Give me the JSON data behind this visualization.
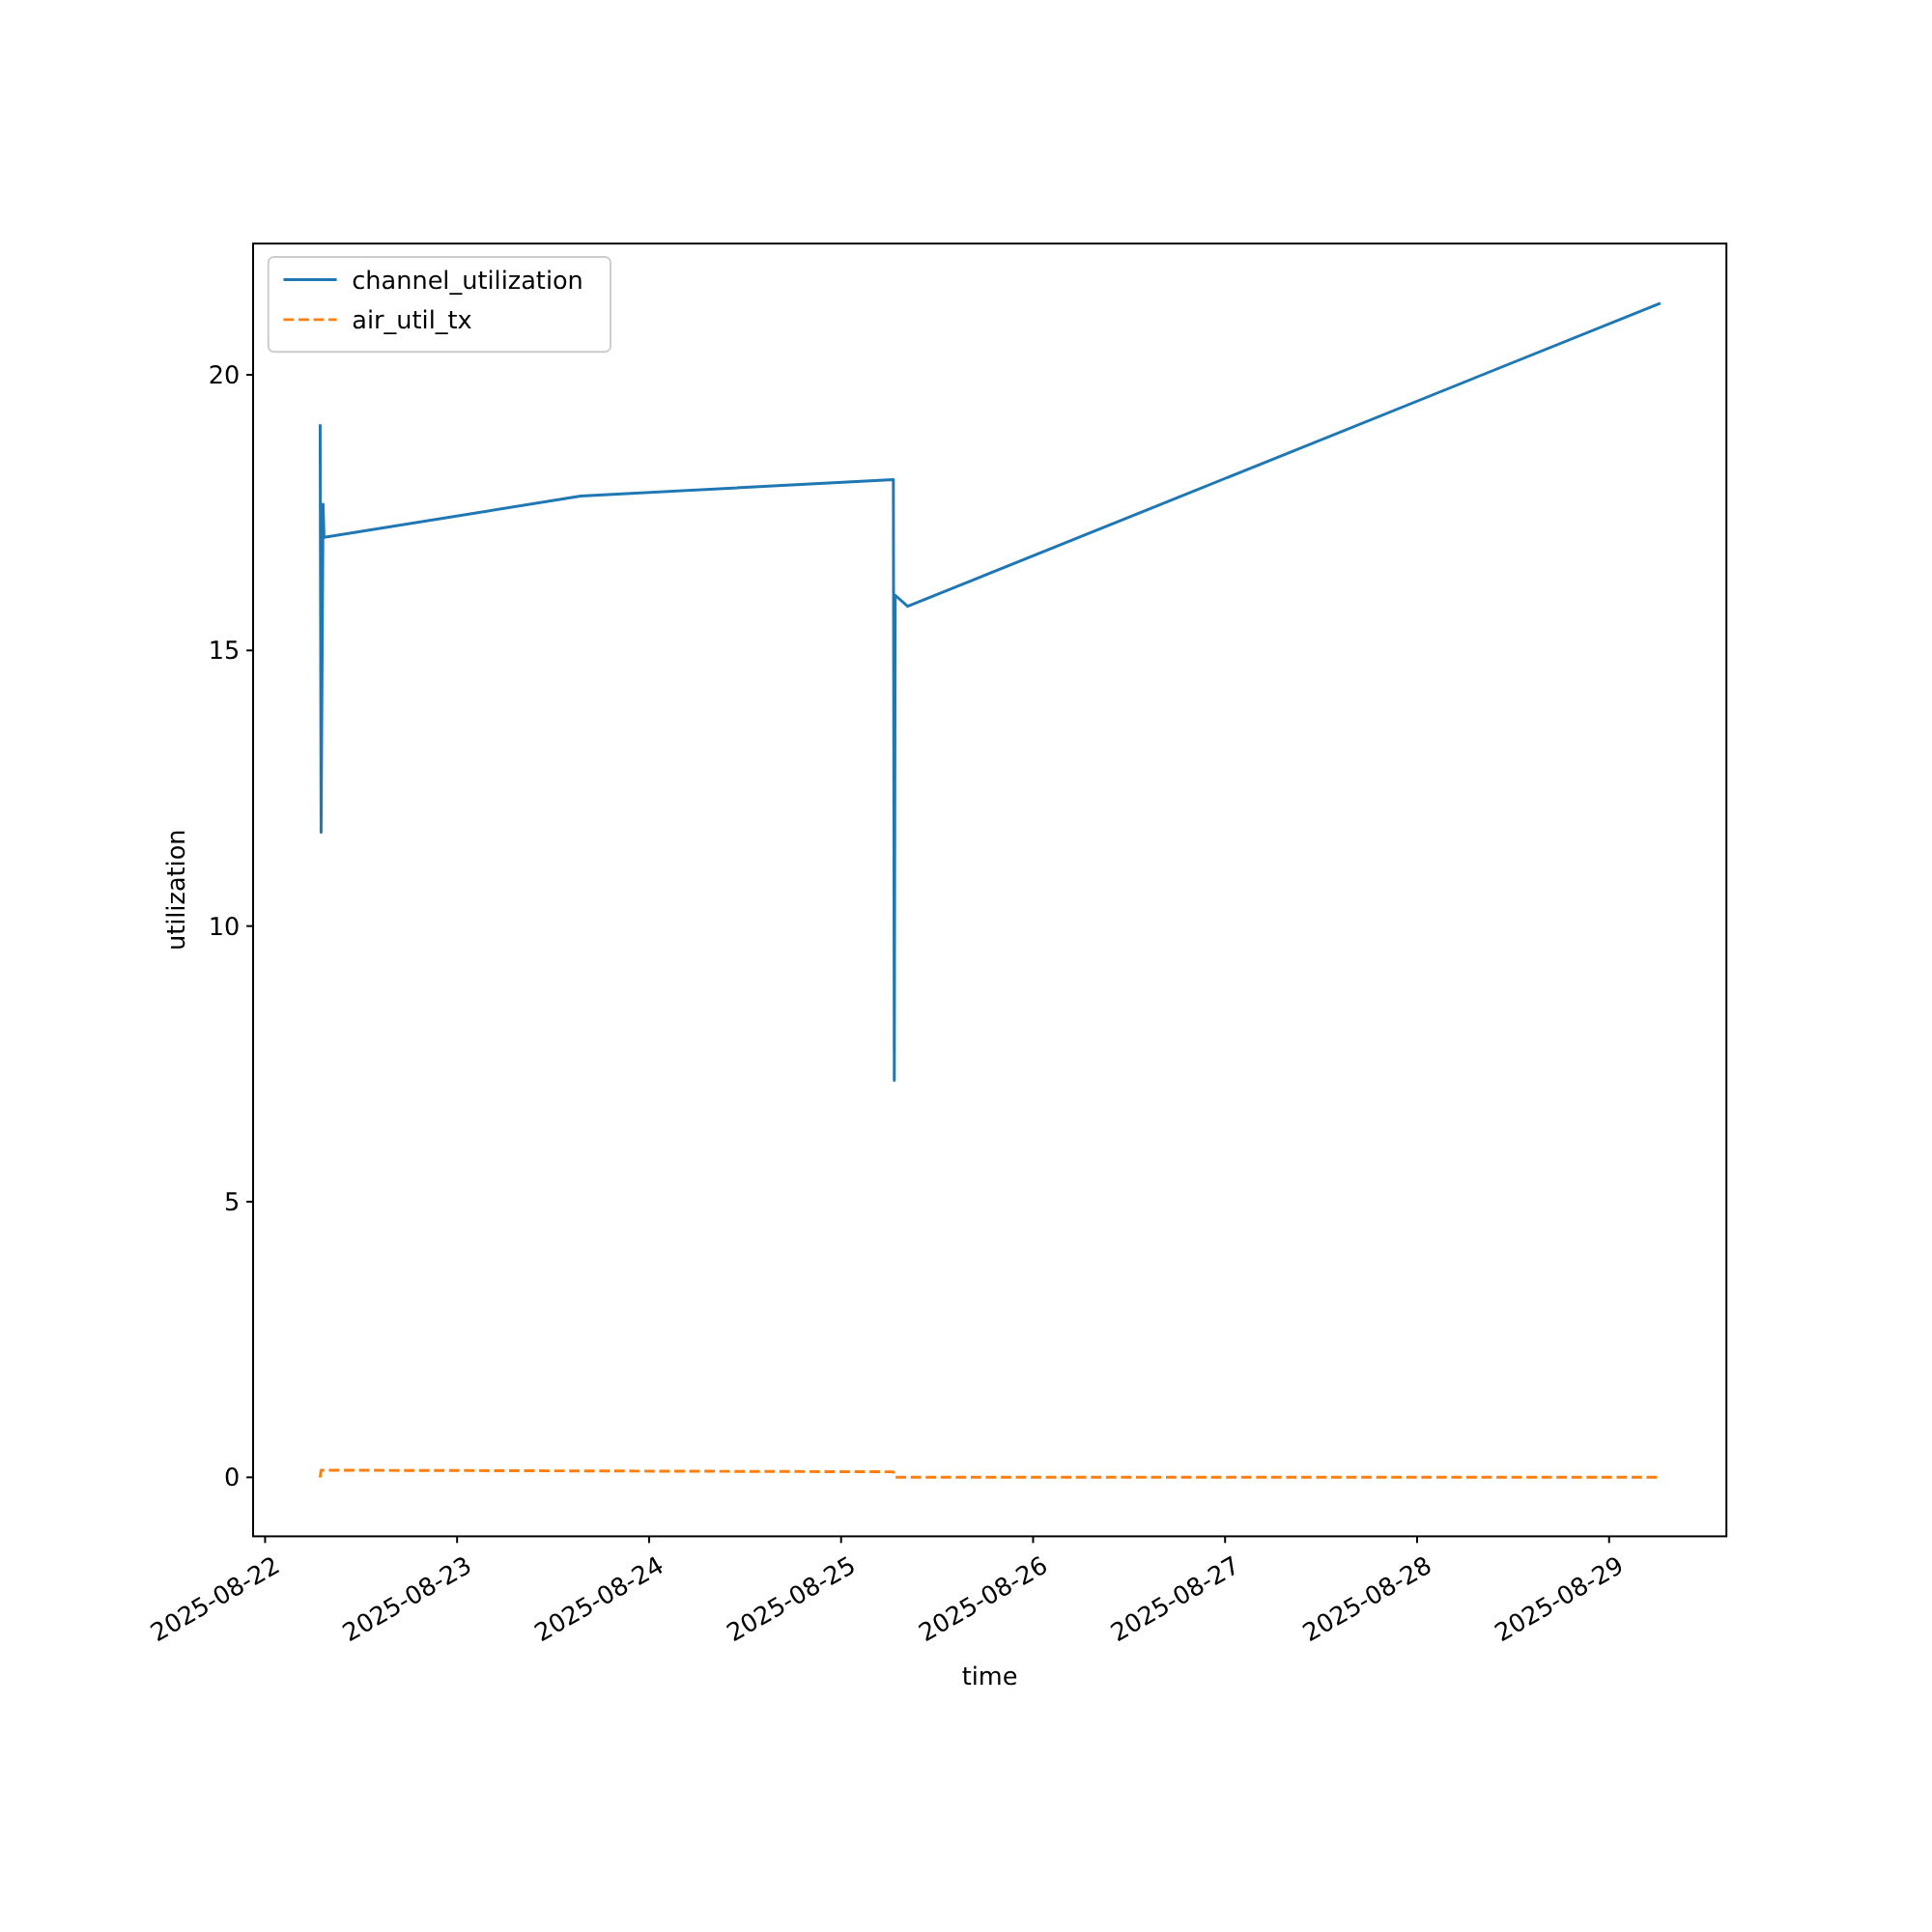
{
  "chart_data": {
    "type": "line",
    "xlabel": "time",
    "ylabel": "utilization",
    "xlim": [
      "2025-08-21T22:30",
      "2025-08-29T14:40"
    ],
    "xticks": [
      "2025-08-22",
      "2025-08-23",
      "2025-08-24",
      "2025-08-25",
      "2025-08-26",
      "2025-08-27",
      "2025-08-28",
      "2025-08-29"
    ],
    "ylim": [
      -1.07,
      22.38
    ],
    "yticks": [
      0,
      5,
      10,
      15,
      20
    ],
    "legend": "top left",
    "grid": false,
    "series": [
      {
        "name": "channel_utilization",
        "color": "#1f77b4",
        "line_style": "solid",
        "x": [
          "2025-08-22T06:53",
          "2025-08-22T07:00",
          "2025-08-22T07:15",
          "2025-08-22T07:22",
          "2025-08-23T15:27",
          "2025-08-25T06:32",
          "2025-08-25T06:39",
          "2025-08-25T06:46",
          "2025-08-25T08:19",
          "2025-08-29T06:25"
        ],
        "values": [
          19.1,
          11.7,
          17.65,
          17.05,
          17.8,
          18.1,
          7.2,
          16.0,
          15.8,
          21.3
        ]
      },
      {
        "name": "air_util_tx",
        "color": "#ff7f0e",
        "line_style": "dashed",
        "x": [
          "2025-08-22T06:53",
          "2025-08-22T07:00",
          "2025-08-25T06:32",
          "2025-08-25T06:46",
          "2025-08-29T06:25"
        ],
        "values": [
          0.0,
          0.13,
          0.1,
          0.0,
          0.0
        ]
      }
    ]
  }
}
